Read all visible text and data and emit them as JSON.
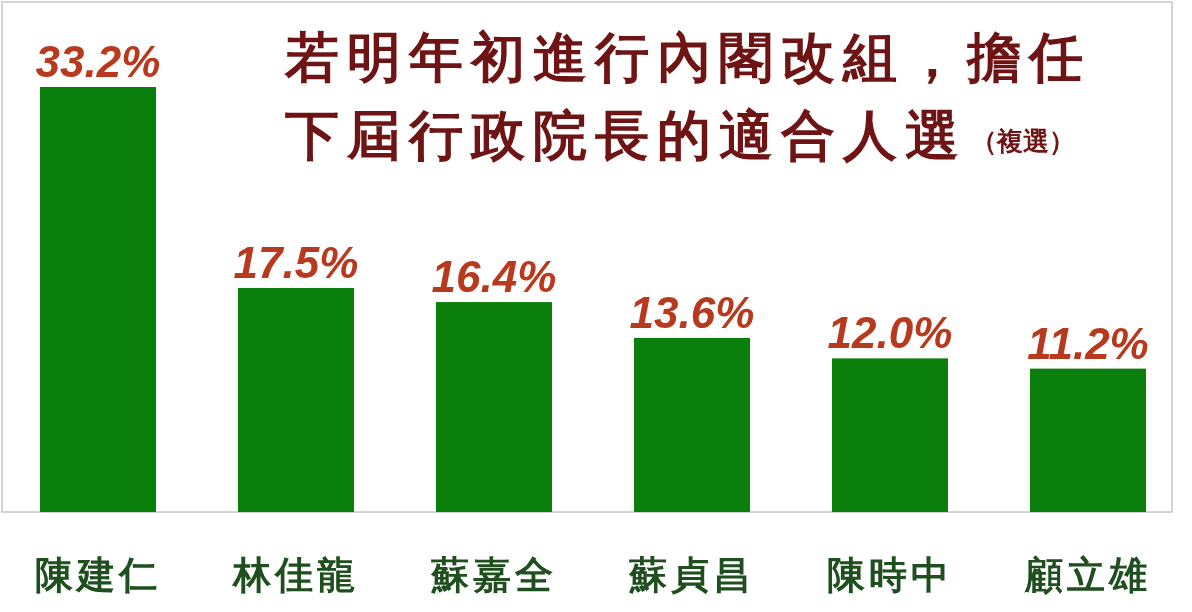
{
  "chart_data": {
    "type": "bar",
    "title": "若明年初進行內閣改組，擔任下屆行政院長的適合人選",
    "subtitle": "（複選）",
    "categories": [
      "陳建仁",
      "林佳龍",
      "蘇嘉全",
      "蘇貞昌",
      "陳時中",
      "顧立雄"
    ],
    "values": [
      33.2,
      17.5,
      16.4,
      13.6,
      12.0,
      11.2
    ],
    "value_labels": [
      "33.2%",
      "17.5%",
      "16.4%",
      "13.6%",
      "12.0%",
      "11.2%"
    ],
    "color": "#0b7f0b"
  }
}
